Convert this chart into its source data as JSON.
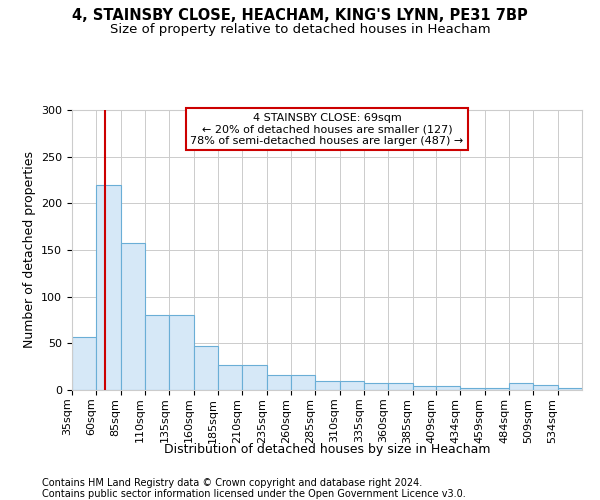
{
  "title1": "4, STAINSBY CLOSE, HEACHAM, KING'S LYNN, PE31 7BP",
  "title2": "Size of property relative to detached houses in Heacham",
  "xlabel": "Distribution of detached houses by size in Heacham",
  "ylabel": "Number of detached properties",
  "footer1": "Contains HM Land Registry data © Crown copyright and database right 2024.",
  "footer2": "Contains public sector information licensed under the Open Government Licence v3.0.",
  "categories": [
    "35sqm",
    "60sqm",
    "85sqm",
    "110sqm",
    "135sqm",
    "160sqm",
    "185sqm",
    "210sqm",
    "235sqm",
    "260sqm",
    "285sqm",
    "310sqm",
    "335sqm",
    "360sqm",
    "385sqm",
    "409sqm",
    "434sqm",
    "459sqm",
    "484sqm",
    "509sqm",
    "534sqm"
  ],
  "bin_edges": [
    35,
    60,
    85,
    110,
    135,
    160,
    185,
    210,
    235,
    260,
    285,
    310,
    335,
    360,
    385,
    409,
    434,
    459,
    484,
    509,
    534,
    559
  ],
  "values": [
    57,
    220,
    157,
    80,
    80,
    47,
    27,
    27,
    16,
    16,
    10,
    10,
    7,
    7,
    4,
    4,
    2,
    2,
    8,
    5,
    2
  ],
  "bar_color": "#d6e8f7",
  "bar_edge_color": "#6aaed6",
  "grid_color": "#cccccc",
  "vline_x": 69,
  "vline_color": "#cc0000",
  "annotation_line1": "4 STAINSBY CLOSE: 69sqm",
  "annotation_line2": "← 20% of detached houses are smaller (127)",
  "annotation_line3": "78% of semi-detached houses are larger (487) →",
  "annotation_box_color": "#ffffff",
  "annotation_box_edge": "#cc0000",
  "ylim": [
    0,
    300
  ],
  "yticks": [
    0,
    50,
    100,
    150,
    200,
    250,
    300
  ],
  "background_color": "#ffffff",
  "title_fontsize": 10.5,
  "subtitle_fontsize": 9.5,
  "axis_label_fontsize": 9,
  "tick_fontsize": 8,
  "annotation_fontsize": 8,
  "footer_fontsize": 7
}
